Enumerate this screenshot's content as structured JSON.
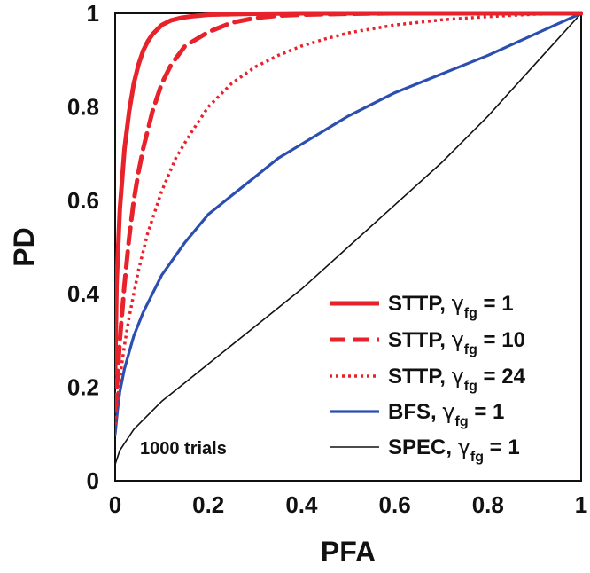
{
  "chart_data": {
    "type": "line",
    "title": "",
    "xlabel": "PFA",
    "ylabel": "PD",
    "xlim": [
      0,
      1
    ],
    "ylim": [
      0,
      1
    ],
    "x_ticks": [
      "0",
      "0.2",
      "0.4",
      "0.6",
      "0.8",
      "1"
    ],
    "y_ticks": [
      "0",
      "0.2",
      "0.4",
      "0.6",
      "0.8",
      "1"
    ],
    "grid": false,
    "legend_position": "bottom-right",
    "annotation": "1000 trials",
    "series": [
      {
        "name": "STTP, γfg = 1",
        "legend_main": "STTP, ",
        "legend_gamma": "γ",
        "legend_sub": "fg",
        "legend_tail": " = 1",
        "color": "#e8222a",
        "style": "solid",
        "x": [
          0,
          0.003,
          0.01,
          0.02,
          0.03,
          0.04,
          0.05,
          0.06,
          0.07,
          0.08,
          0.09,
          0.1,
          0.12,
          0.14,
          0.16,
          0.18,
          0.2,
          0.25,
          0.3,
          0.4,
          0.5,
          0.6,
          0.8,
          1.0
        ],
        "y": [
          0.23,
          0.42,
          0.58,
          0.71,
          0.79,
          0.85,
          0.89,
          0.92,
          0.94,
          0.955,
          0.965,
          0.975,
          0.985,
          0.99,
          0.993,
          0.995,
          0.997,
          0.998,
          0.999,
          1.0,
          1.0,
          1.0,
          1.0,
          1.0
        ]
      },
      {
        "name": "STTP, γfg = 10",
        "legend_main": "STTP, ",
        "legend_gamma": "γ",
        "legend_sub": "fg",
        "legend_tail": " = 10",
        "color": "#e8222a",
        "style": "dashed",
        "x": [
          0,
          0.005,
          0.01,
          0.02,
          0.03,
          0.04,
          0.05,
          0.06,
          0.07,
          0.08,
          0.1,
          0.12,
          0.15,
          0.2,
          0.25,
          0.3,
          0.35,
          0.4,
          0.5,
          0.6,
          0.7,
          0.8,
          1.0
        ],
        "y": [
          0.15,
          0.22,
          0.3,
          0.42,
          0.52,
          0.6,
          0.66,
          0.71,
          0.75,
          0.79,
          0.85,
          0.89,
          0.93,
          0.96,
          0.98,
          0.99,
          0.995,
          0.997,
          0.999,
          1.0,
          1.0,
          1.0,
          1.0
        ]
      },
      {
        "name": "STTP, γfg = 24",
        "legend_main": "STTP, ",
        "legend_gamma": "γ",
        "legend_sub": "fg",
        "legend_tail": " = 24",
        "color": "#e8222a",
        "style": "dotted",
        "x": [
          0,
          0.005,
          0.01,
          0.02,
          0.03,
          0.05,
          0.07,
          0.1,
          0.13,
          0.16,
          0.2,
          0.25,
          0.3,
          0.35,
          0.4,
          0.45,
          0.5,
          0.6,
          0.7,
          0.8,
          0.9,
          1.0
        ],
        "y": [
          0.12,
          0.17,
          0.22,
          0.29,
          0.35,
          0.45,
          0.53,
          0.62,
          0.69,
          0.74,
          0.8,
          0.85,
          0.885,
          0.91,
          0.93,
          0.945,
          0.958,
          0.975,
          0.986,
          0.993,
          0.998,
          1.0
        ]
      },
      {
        "name": "BFS, γfg = 1",
        "legend_main": "BFS, ",
        "legend_gamma": "γ",
        "legend_sub": "fg",
        "legend_tail": " = 1",
        "color": "#2c4eb0",
        "style": "solid",
        "x": [
          0,
          0.005,
          0.01,
          0.02,
          0.04,
          0.06,
          0.08,
          0.1,
          0.15,
          0.2,
          0.25,
          0.3,
          0.35,
          0.4,
          0.5,
          0.6,
          0.7,
          0.8,
          0.9,
          1.0
        ],
        "y": [
          0.1,
          0.15,
          0.19,
          0.24,
          0.31,
          0.36,
          0.4,
          0.44,
          0.51,
          0.57,
          0.61,
          0.65,
          0.69,
          0.72,
          0.78,
          0.83,
          0.87,
          0.91,
          0.955,
          1.0
        ]
      },
      {
        "name": "SPEC, γfg = 1",
        "legend_main": "SPEC, ",
        "legend_gamma": "γ",
        "legend_sub": "fg",
        "legend_tail": " = 1",
        "color": "#111111",
        "style": "thin",
        "x": [
          0,
          0.005,
          0.01,
          0.02,
          0.04,
          0.06,
          0.1,
          0.15,
          0.2,
          0.3,
          0.4,
          0.5,
          0.6,
          0.7,
          0.8,
          0.9,
          1.0
        ],
        "y": [
          0.035,
          0.05,
          0.065,
          0.08,
          0.11,
          0.13,
          0.17,
          0.21,
          0.25,
          0.33,
          0.41,
          0.5,
          0.59,
          0.68,
          0.78,
          0.89,
          1.0
        ]
      }
    ]
  }
}
